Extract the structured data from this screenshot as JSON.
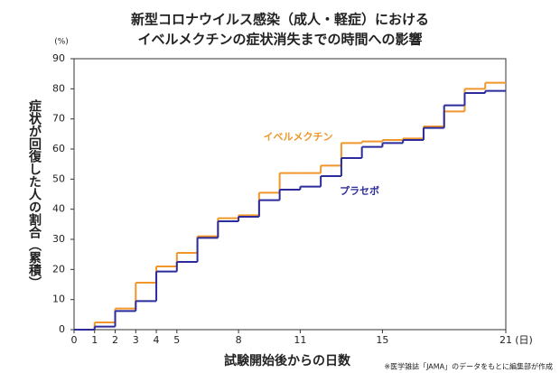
{
  "chart_data": {
    "type": "step",
    "title": [
      "新型コロナウイルス感染（成人・軽症）における",
      "イベルメクチンの症状消失までの時間への影響"
    ],
    "y_unit": "(%)",
    "x_unit": "(日)",
    "y_label": "症状が回復した人の割合（累積）",
    "x_label": "試験開始後からの日数",
    "note": "※医学雑誌「JAMA」のデータをもとに編集部が作成",
    "x": [
      0,
      1,
      2,
      3,
      4,
      5,
      6,
      7,
      8,
      9,
      10,
      11,
      12,
      13,
      14,
      15,
      16,
      17,
      18,
      19,
      20
    ],
    "series": [
      {
        "name": "イベルメクチン",
        "color": "#f0962a",
        "values": [
          0,
          2.4,
          7,
          15.6,
          21,
          25.5,
          31,
          37,
          38,
          45.5,
          52,
          52,
          54.5,
          62,
          62.5,
          63,
          63.5,
          67.5,
          72.5,
          80,
          82
        ]
      },
      {
        "name": "プラセボ",
        "color": "#2b2b9c",
        "values": [
          0,
          1,
          6.2,
          9.5,
          19.3,
          22.5,
          30.5,
          36,
          37.5,
          43,
          46.5,
          47.5,
          51,
          57,
          60.7,
          62,
          63,
          67,
          74.5,
          78.6,
          79.3
        ]
      }
    ],
    "xlim": [
      0,
      21
    ],
    "ylim": [
      0,
      90
    ],
    "xticks": [
      0,
      1,
      2,
      3,
      4,
      5,
      8,
      11,
      15,
      21
    ],
    "yticks": [
      0,
      10,
      20,
      30,
      40,
      50,
      60,
      70,
      80,
      90
    ]
  }
}
